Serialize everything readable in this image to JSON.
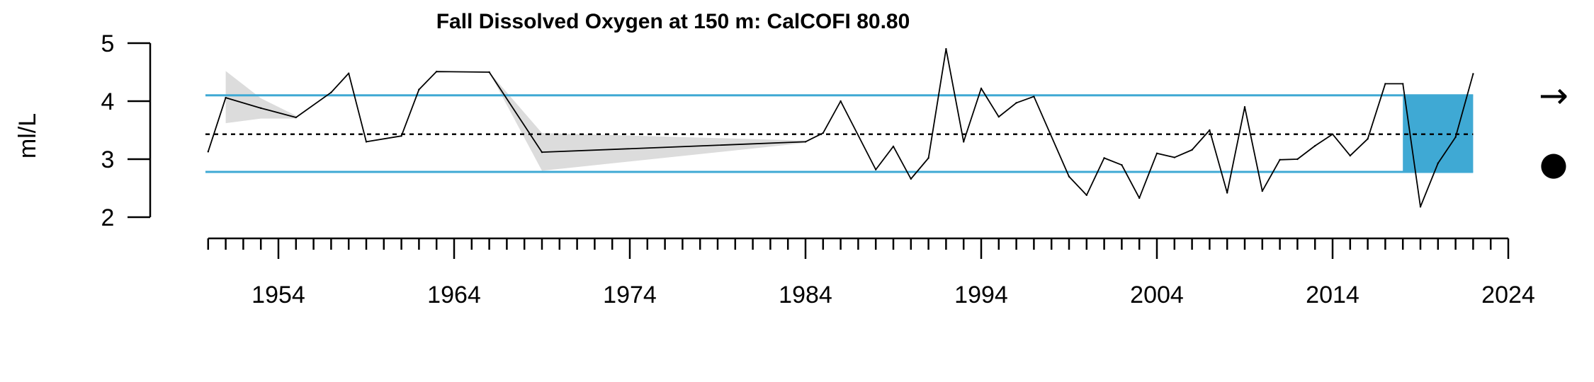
{
  "chart_data": {
    "type": "line",
    "title": "Fall Dissolved Oxygen at 150 m: CalCOFI 80.80",
    "ylabel": "ml/L",
    "xlabel": "",
    "xlim": [
      1949.5,
      2024
    ],
    "ylim": [
      2,
      5
    ],
    "yticks": [
      2,
      3,
      4,
      5
    ],
    "ytick_labels": [
      "2",
      "3",
      "4",
      "5"
    ],
    "xticks": [
      1954,
      1964,
      1974,
      1984,
      1994,
      2004,
      2014,
      2024
    ],
    "xtick_labels": [
      "1954",
      "1964",
      "1974",
      "1984",
      "1994",
      "2004",
      "2014",
      "2024"
    ],
    "minor_xticks_from": 1950,
    "minor_xticks_to": 2024,
    "mean": 3.43,
    "upper_sd": 4.1,
    "lower_sd": 2.78,
    "recent_period": [
      2018,
      2022
    ],
    "x": [
      1950,
      1951,
      1953,
      1955,
      1957,
      1958,
      1959,
      1961,
      1962,
      1963,
      1966,
      1969,
      1984,
      1985,
      1986,
      1988,
      1989,
      1990,
      1991,
      1992,
      1993,
      1994,
      1995,
      1996,
      1997,
      1999,
      2000,
      2001,
      2002,
      2003,
      2004,
      2005,
      2006,
      2007,
      2008,
      2009,
      2010,
      2011,
      2012,
      2013,
      2014,
      2015,
      2016,
      2017,
      2018,
      2019,
      2020,
      2021,
      2022
    ],
    "values": [
      3.13,
      4.06,
      3.88,
      3.72,
      4.15,
      4.48,
      3.3,
      3.4,
      4.2,
      4.51,
      4.5,
      3.12,
      3.3,
      3.45,
      4.0,
      2.82,
      3.22,
      2.66,
      3.02,
      4.9,
      3.3,
      4.22,
      3.73,
      3.97,
      4.08,
      2.7,
      2.38,
      3.02,
      2.9,
      2.33,
      3.1,
      3.03,
      3.16,
      3.5,
      2.42,
      3.9,
      2.45,
      2.99,
      3.0,
      3.23,
      3.43,
      3.06,
      3.35,
      4.3,
      4.3,
      2.18,
      2.93,
      3.38,
      4.47
    ],
    "uncertainty_upper": [
      null,
      4.52,
      4.05,
      3.75,
      null,
      null,
      null,
      null,
      null,
      null,
      4.5,
      3.45,
      3.32,
      null,
      null,
      null,
      null,
      null,
      null,
      null,
      null,
      null,
      null,
      null,
      null,
      null,
      null,
      null,
      null,
      null,
      null,
      null,
      null,
      null,
      null,
      null,
      null,
      null,
      null,
      null,
      null,
      null,
      null,
      null,
      null,
      null,
      null,
      null,
      null
    ],
    "uncertainty_lower": [
      null,
      3.62,
      3.7,
      3.7,
      null,
      null,
      null,
      null,
      null,
      null,
      4.5,
      2.8,
      3.28,
      null,
      null,
      null,
      null,
      null,
      null,
      null,
      null,
      null,
      null,
      null,
      null,
      null,
      null,
      null,
      null,
      null,
      null,
      null,
      null,
      null,
      null,
      null,
      null,
      null,
      null,
      null,
      null,
      null,
      null,
      null,
      null,
      null,
      null,
      null,
      null
    ],
    "grid": false,
    "legend": "none",
    "trend_symbol": "→",
    "status_symbol": "●",
    "colors": {
      "line": "#000000",
      "sd_lines": "#3fa9d4",
      "recent_fill": "#3fa9d4",
      "uncertainty": "#dcdcdc"
    }
  }
}
